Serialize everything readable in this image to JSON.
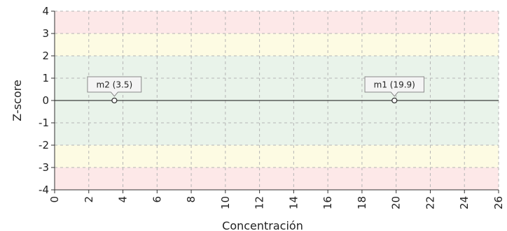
{
  "chart_data": {
    "type": "scatter",
    "xlabel": "Concentración",
    "ylabel": "Z-score",
    "xlim": [
      0,
      26
    ],
    "ylim": [
      -4,
      4
    ],
    "x_ticks": [
      "0",
      "2",
      "4",
      "6",
      "8",
      "10",
      "12",
      "14",
      "16",
      "18",
      "20",
      "22",
      "24",
      "26"
    ],
    "y_ticks": [
      "4",
      "3",
      "2",
      "1",
      "0",
      "-1",
      "-2",
      "-3",
      "-4"
    ],
    "grid": true,
    "bands": [
      {
        "from": 3,
        "to": 4,
        "color": "#fde8e8"
      },
      {
        "from": 2,
        "to": 3,
        "color": "#fdfbe3"
      },
      {
        "from": -2,
        "to": 2,
        "color": "#e9f3ea"
      },
      {
        "from": -3,
        "to": -2,
        "color": "#fdfbe3"
      },
      {
        "from": -4,
        "to": -3,
        "color": "#fde8e8"
      }
    ],
    "points": [
      {
        "label": "m2 (3.5)",
        "x": 3.5,
        "y": 0
      },
      {
        "label": "m1 (19.9)",
        "x": 19.9,
        "y": 0
      }
    ]
  }
}
